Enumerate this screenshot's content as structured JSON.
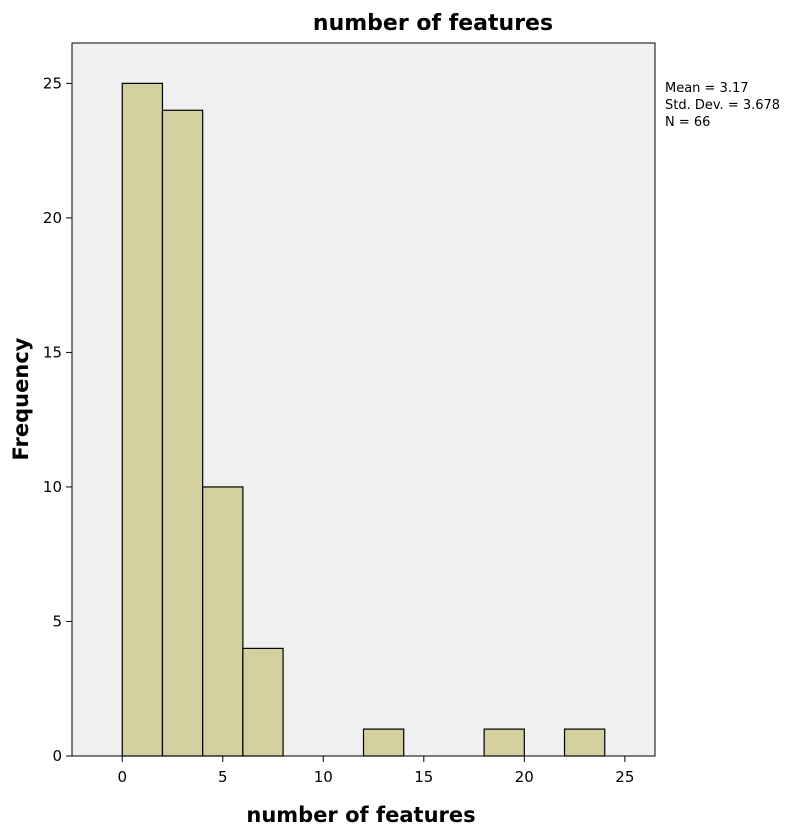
{
  "chart_data": {
    "type": "bar",
    "title": "number of features",
    "xlabel": "number of features",
    "ylabel": "Frequency",
    "bin_width": 2,
    "bins": [
      {
        "start": 0,
        "end": 2,
        "count": 25
      },
      {
        "start": 2,
        "end": 4,
        "count": 24
      },
      {
        "start": 4,
        "end": 6,
        "count": 10
      },
      {
        "start": 6,
        "end": 8,
        "count": 4
      },
      {
        "start": 12,
        "end": 14,
        "count": 1
      },
      {
        "start": 18,
        "end": 20,
        "count": 1
      },
      {
        "start": 22,
        "end": 24,
        "count": 1
      }
    ],
    "xlim": [
      -2.5,
      26.5
    ],
    "ylim": [
      0,
      26.5
    ],
    "xticks": [
      0,
      5,
      10,
      15,
      20,
      25
    ],
    "yticks": [
      0,
      5,
      10,
      15,
      20,
      25
    ],
    "grid": false,
    "bar_color": "#d3cf9f",
    "bar_edge_color": "#000000",
    "plot_background": "#f0f0f0",
    "stats": {
      "mean": "Mean = 3.17",
      "std": "Std. Dev. = 3.678",
      "n": "N = 66"
    }
  }
}
